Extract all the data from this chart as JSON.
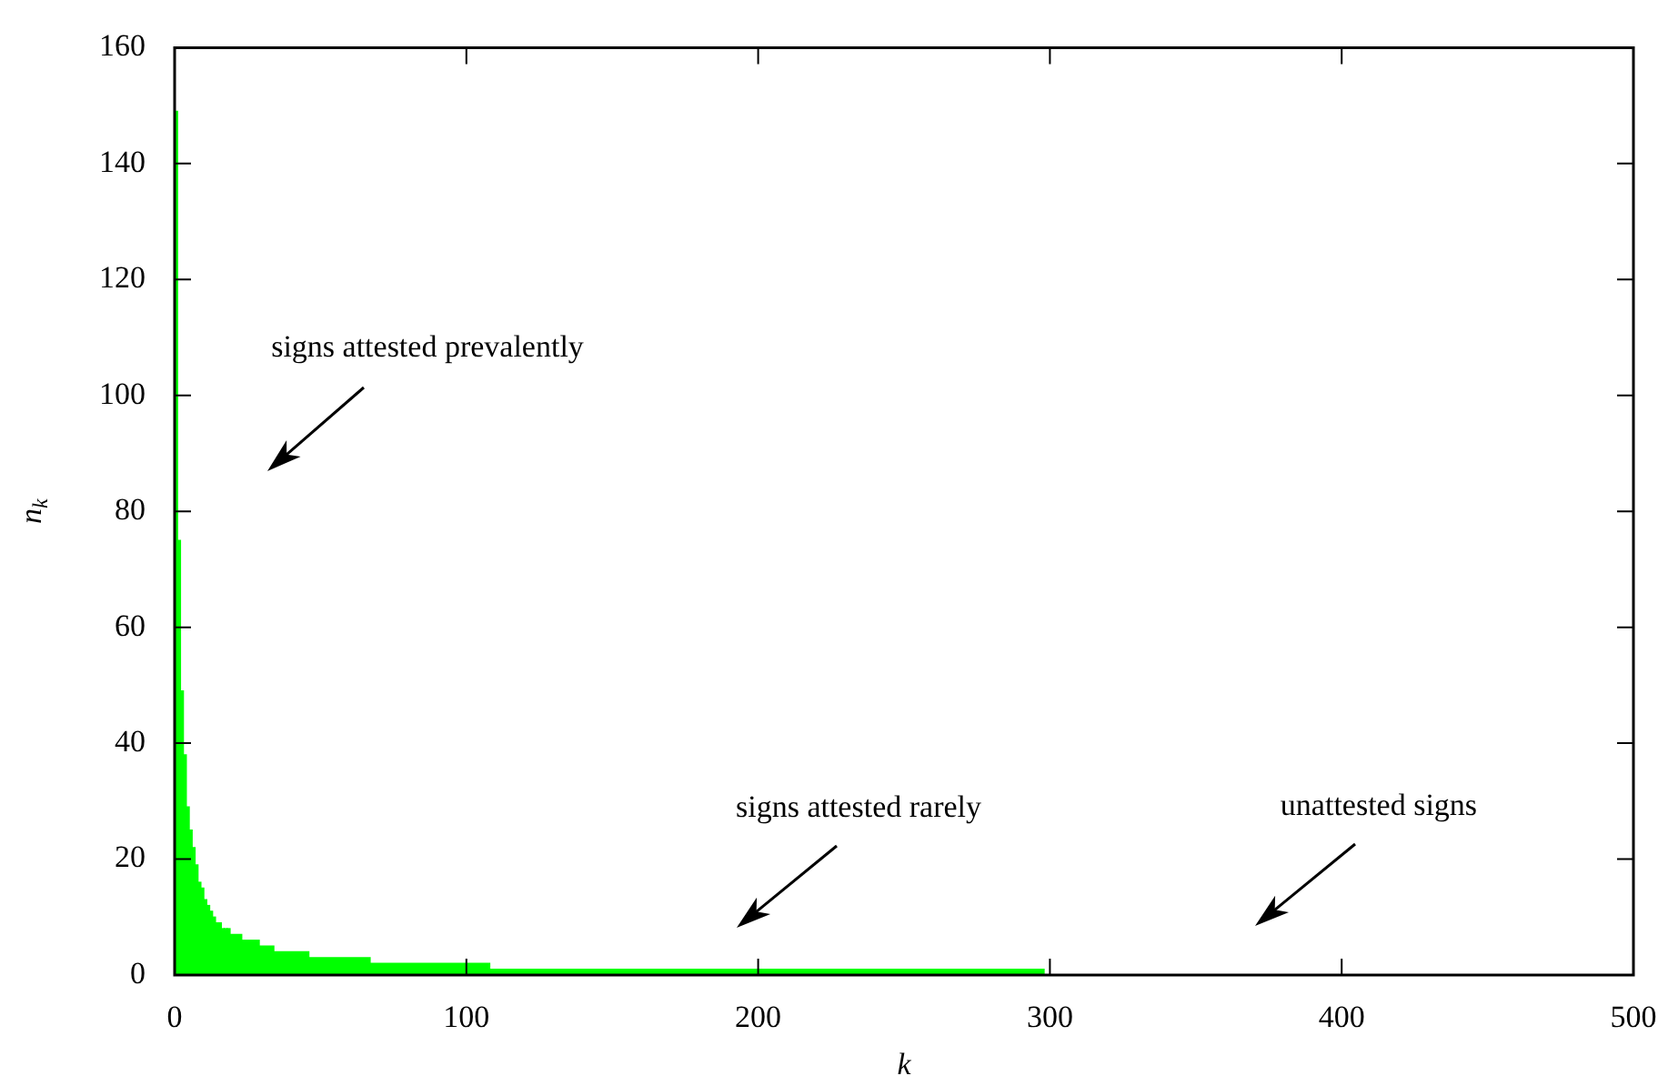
{
  "chart_data": {
    "type": "histogram",
    "xlabel": "k",
    "ylabel": "n$_{k}$",
    "bins": [
      0,
      1,
      2,
      3,
      4,
      5,
      6,
      7,
      8,
      9,
      10,
      11,
      12,
      13,
      14,
      15,
      16,
      17,
      18,
      19,
      23,
      29,
      34,
      46,
      67,
      108,
      298
    ],
    "values": [
      149,
      75,
      49,
      38,
      29,
      25,
      22,
      19,
      16,
      15,
      13,
      12,
      11,
      10,
      9,
      9,
      8,
      8,
      8,
      7,
      6,
      5,
      4,
      3,
      2,
      1
    ],
    "color": "#00ff00",
    "xlim": [
      0,
      500
    ],
    "xticks": [
      0,
      100,
      200,
      300,
      400,
      500
    ],
    "ylim": [
      0,
      160
    ],
    "yticks": [
      0,
      20,
      40,
      60,
      80,
      100,
      120,
      140,
      160
    ],
    "annotations": [
      "signs attested prevalently",
      "signs attested rarely",
      "unattested signs"
    ]
  }
}
